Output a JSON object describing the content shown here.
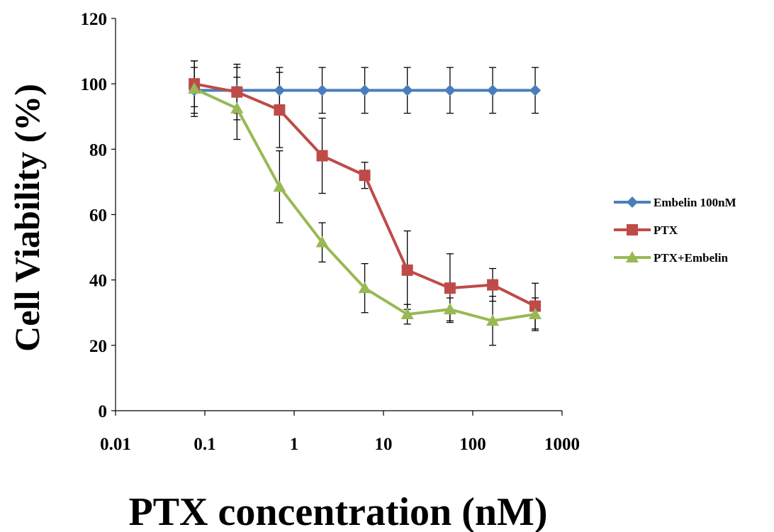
{
  "chart_data": {
    "type": "line",
    "xlabel": "PTX concentration (nM)",
    "ylabel": "Cell Viability (%)",
    "xscale": "log",
    "xlim": [
      0.01,
      1000
    ],
    "ylim": [
      0,
      120
    ],
    "xticks": [
      {
        "value": 0.01,
        "label": "0.01"
      },
      {
        "value": 0.1,
        "label": "0.1"
      },
      {
        "value": 1,
        "label": "1"
      },
      {
        "value": 10,
        "label": "10"
      },
      {
        "value": 100,
        "label": "100"
      },
      {
        "value": 1000,
        "label": "1000"
      }
    ],
    "yticks": [
      {
        "value": 0,
        "label": "0"
      },
      {
        "value": 20,
        "label": "20"
      },
      {
        "value": 40,
        "label": "40"
      },
      {
        "value": 60,
        "label": "60"
      },
      {
        "value": 80,
        "label": "80"
      },
      {
        "value": 100,
        "label": "100"
      },
      {
        "value": 120,
        "label": "120"
      }
    ],
    "grid": false,
    "legend_position": "right",
    "x": [
      0.0762,
      0.229,
      0.686,
      2.06,
      6.17,
      18.5,
      55.6,
      167,
      500
    ],
    "series": [
      {
        "name": "Embelin 100nM",
        "color": "#4a7ebb",
        "marker": "diamond",
        "values": [
          98,
          98,
          98,
          98,
          98,
          98,
          98,
          98,
          98
        ],
        "errors": [
          7,
          7,
          7,
          7,
          7,
          7,
          7,
          7,
          7
        ]
      },
      {
        "name": "PTX",
        "color": "#be4b48",
        "marker": "square",
        "values": [
          100,
          97.5,
          92,
          78,
          72,
          43,
          37.5,
          38.5,
          32
        ],
        "errors": [
          7,
          8.5,
          11.5,
          11.5,
          4,
          12,
          10.5,
          5,
          7
        ]
      },
      {
        "name": "PTX+Embelin",
        "color": "#98b954",
        "marker": "triangle",
        "values": [
          98.5,
          92.5,
          68.5,
          51.5,
          37.5,
          29.5,
          31,
          27.5,
          29.5
        ],
        "errors": [
          8.5,
          9.5,
          11,
          6,
          7.5,
          3,
          3.5,
          7.5,
          5
        ]
      }
    ]
  }
}
